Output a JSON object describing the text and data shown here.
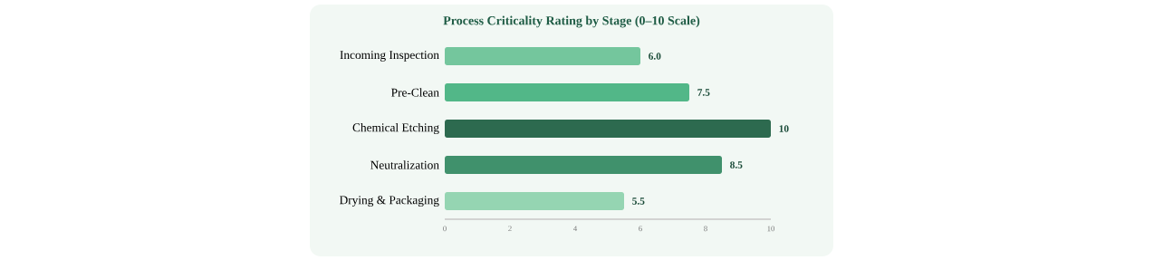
{
  "chart_data": {
    "type": "bar",
    "orientation": "horizontal",
    "title": "Process Criticality Rating by Stage (0–10 Scale)",
    "categories": [
      "Incoming Inspection",
      "Pre-Clean",
      "Chemical Etching",
      "Neutralization",
      "Drying & Packaging"
    ],
    "values": [
      6.0,
      7.5,
      10,
      8.5,
      5.5
    ],
    "colors": [
      "#74c69d",
      "#52b788",
      "#2d6a4f",
      "#40916c",
      "#95d5b2"
    ],
    "value_labels": [
      "6.0",
      "7.5",
      "10",
      "8.5",
      "5.5"
    ],
    "xlim": [
      0,
      10
    ],
    "xticks": [
      0,
      2,
      4,
      6,
      8,
      10
    ],
    "grid": false
  }
}
